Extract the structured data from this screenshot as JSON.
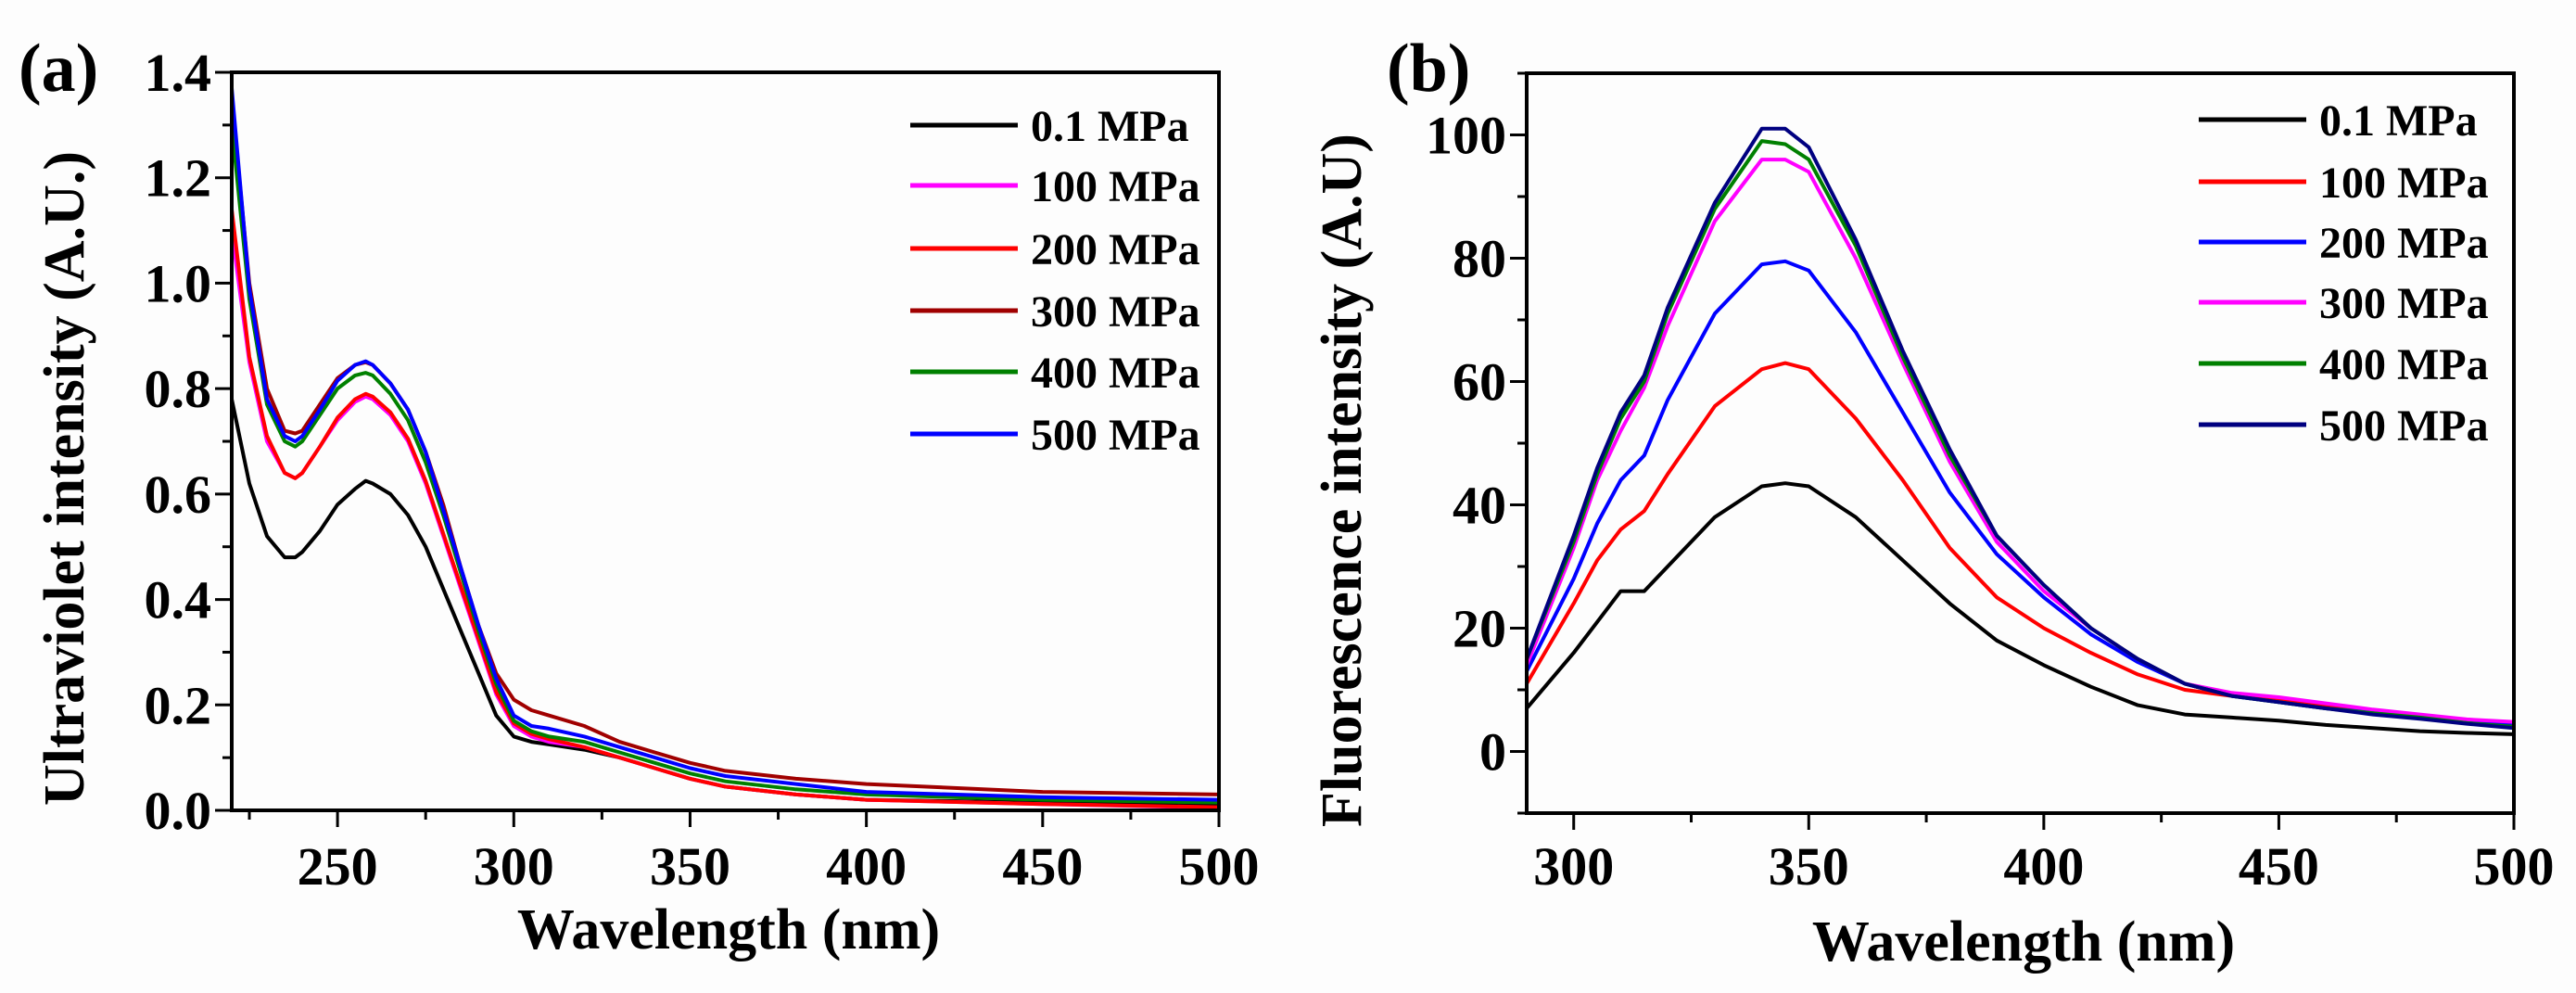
{
  "chart_data": [
    {
      "type": "line",
      "panel_label": "(a)",
      "xlabel": "Wavelength (nm)",
      "ylabel": "Ultraviolet intensity (A.U.)",
      "xlim": [
        220,
        500
      ],
      "ylim": [
        0,
        1.4
      ],
      "xticks": [
        250,
        300,
        350,
        400,
        450,
        500
      ],
      "yticks": [
        0.0,
        0.2,
        0.4,
        0.6,
        0.8,
        1.0,
        1.2,
        1.4
      ],
      "ytick_labels": [
        "0.0",
        "0.2",
        "0.4",
        "0.6",
        "0.8",
        "1.0",
        "1.2",
        "1.4"
      ],
      "grid": false,
      "legend_position": "top-right",
      "x": [
        220,
        225,
        230,
        235,
        238,
        240,
        245,
        250,
        255,
        258,
        260,
        265,
        270,
        275,
        280,
        285,
        290,
        295,
        300,
        305,
        310,
        320,
        330,
        340,
        350,
        360,
        380,
        400,
        450,
        500
      ],
      "series": [
        {
          "name": "0.1 MPa",
          "color": "#000000",
          "values": [
            0.78,
            0.62,
            0.52,
            0.48,
            0.48,
            0.49,
            0.53,
            0.58,
            0.61,
            0.625,
            0.62,
            0.6,
            0.56,
            0.5,
            0.42,
            0.34,
            0.26,
            0.18,
            0.14,
            0.13,
            0.125,
            0.115,
            0.1,
            0.08,
            0.06,
            0.045,
            0.03,
            0.02,
            0.015,
            0.01
          ]
        },
        {
          "name": "100 MPa",
          "color": "#ff00ff",
          "values": [
            1.1,
            0.85,
            0.7,
            0.64,
            0.63,
            0.64,
            0.69,
            0.74,
            0.775,
            0.785,
            0.78,
            0.75,
            0.7,
            0.62,
            0.52,
            0.42,
            0.32,
            0.22,
            0.16,
            0.14,
            0.13,
            0.12,
            0.1,
            0.08,
            0.06,
            0.045,
            0.03,
            0.02,
            0.012,
            0.005
          ]
        },
        {
          "name": "200 MPa",
          "color": "#ff0000",
          "values": [
            1.14,
            0.86,
            0.71,
            0.64,
            0.63,
            0.64,
            0.69,
            0.745,
            0.78,
            0.79,
            0.785,
            0.755,
            0.705,
            0.625,
            0.525,
            0.425,
            0.325,
            0.225,
            0.165,
            0.145,
            0.135,
            0.12,
            0.1,
            0.08,
            0.06,
            0.045,
            0.03,
            0.02,
            0.012,
            0.006
          ]
        },
        {
          "name": "300 MPa",
          "color": "#a00000",
          "values": [
            1.35,
            1.0,
            0.8,
            0.72,
            0.715,
            0.72,
            0.77,
            0.82,
            0.845,
            0.85,
            0.845,
            0.81,
            0.76,
            0.68,
            0.58,
            0.46,
            0.35,
            0.26,
            0.21,
            0.19,
            0.18,
            0.16,
            0.13,
            0.11,
            0.09,
            0.075,
            0.06,
            0.05,
            0.035,
            0.03
          ]
        },
        {
          "name": "400 MPa",
          "color": "#008000",
          "values": [
            1.3,
            0.97,
            0.77,
            0.7,
            0.69,
            0.7,
            0.75,
            0.8,
            0.825,
            0.83,
            0.825,
            0.79,
            0.74,
            0.66,
            0.56,
            0.45,
            0.34,
            0.24,
            0.17,
            0.15,
            0.14,
            0.13,
            0.11,
            0.09,
            0.07,
            0.055,
            0.04,
            0.03,
            0.02,
            0.015
          ]
        },
        {
          "name": "500 MPa",
          "color": "#0000ff",
          "values": [
            1.37,
            0.99,
            0.78,
            0.71,
            0.7,
            0.71,
            0.76,
            0.815,
            0.845,
            0.852,
            0.845,
            0.81,
            0.76,
            0.68,
            0.57,
            0.46,
            0.35,
            0.25,
            0.18,
            0.16,
            0.155,
            0.14,
            0.12,
            0.1,
            0.08,
            0.065,
            0.05,
            0.035,
            0.025,
            0.02
          ]
        }
      ]
    },
    {
      "type": "line",
      "panel_label": "(b)",
      "xlabel": "Wavelength (nm)",
      "ylabel": "Fluorescence intensity (A.U)",
      "xlim": [
        290,
        500
      ],
      "ylim": [
        -10,
        110
      ],
      "xticks": [
        300,
        350,
        400,
        450,
        500
      ],
      "yticks": [
        0,
        20,
        40,
        60,
        80,
        100
      ],
      "ytick_labels": [
        "0",
        "20",
        "40",
        "60",
        "80",
        "100"
      ],
      "grid": false,
      "legend_position": "top-right",
      "x": [
        290,
        300,
        305,
        310,
        315,
        320,
        330,
        340,
        345,
        350,
        360,
        370,
        380,
        390,
        400,
        410,
        420,
        430,
        440,
        450,
        460,
        470,
        480,
        490,
        500
      ],
      "series": [
        {
          "name": "0.1 MPa",
          "color": "#000000",
          "values": [
            7,
            16,
            21,
            26,
            26,
            30,
            38,
            43,
            43.5,
            43,
            38,
            31,
            24,
            18,
            14,
            10.5,
            7.5,
            6,
            5.5,
            5,
            4.3,
            3.8,
            3.3,
            3,
            2.8
          ]
        },
        {
          "name": "100 MPa",
          "color": "#ff0000",
          "values": [
            11,
            24,
            31,
            36,
            39,
            45,
            56,
            62,
            63,
            62,
            54,
            44,
            33,
            25,
            20,
            16,
            12.5,
            10,
            9,
            8.5,
            7.5,
            6.5,
            5.8,
            5,
            4.5
          ]
        },
        {
          "name": "200 MPa",
          "color": "#0000ff",
          "values": [
            13,
            28,
            37,
            44,
            48,
            57,
            71,
            79,
            79.5,
            78,
            68,
            55,
            42,
            32,
            25,
            19,
            14.5,
            11,
            9,
            8,
            7,
            6.3,
            5.5,
            4.8,
            4.2
          ]
        },
        {
          "name": "300 MPa",
          "color": "#ff00ff",
          "values": [
            14,
            33,
            44,
            52,
            59,
            69,
            86,
            96,
            96,
            94,
            80,
            63,
            47,
            34,
            26,
            20,
            15,
            11,
            9.5,
            8.8,
            7.8,
            6.8,
            6,
            5.2,
            4.8
          ]
        },
        {
          "name": "400 MPa",
          "color": "#008000",
          "values": [
            15,
            34,
            45,
            54,
            60,
            71,
            88,
            99,
            98.5,
            96,
            82,
            64,
            48,
            35,
            27,
            20,
            15,
            11,
            9,
            8,
            7,
            6.2,
            5.5,
            4.6,
            4
          ]
        },
        {
          "name": "500 MPa",
          "color": "#000080",
          "values": [
            15,
            35,
            46,
            55,
            61,
            72,
            89,
            101,
            101,
            98,
            83,
            65,
            49,
            35,
            27,
            20,
            15,
            11,
            9,
            8,
            7,
            6,
            5.3,
            4.5,
            3.8
          ]
        }
      ]
    }
  ]
}
